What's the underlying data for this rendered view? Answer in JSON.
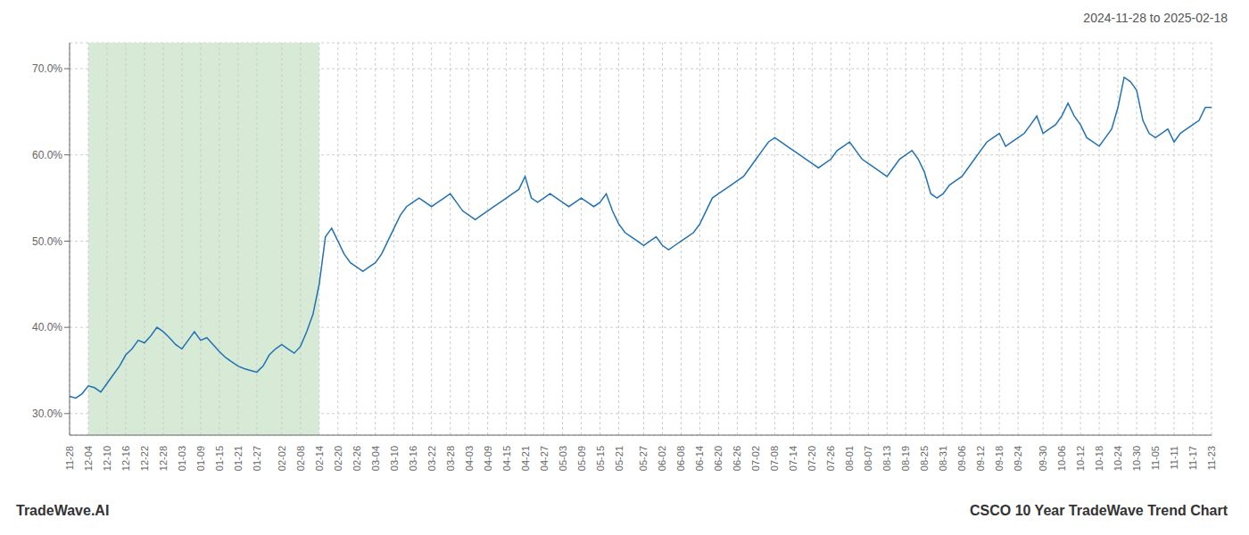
{
  "chart_data": {
    "type": "line",
    "title": "CSCO 10 Year TradeWave Trend Chart",
    "subtitle": "2024-11-28 to 2025-02-18",
    "annotations": [
      "TradeWave.AI"
    ],
    "categories": [
      "11-28",
      null,
      null,
      "12-04",
      null,
      null,
      "12-10",
      null,
      null,
      "12-16",
      null,
      null,
      "12-22",
      null,
      null,
      "12-28",
      null,
      null,
      "01-03",
      null,
      null,
      "01-09",
      null,
      null,
      "01-15",
      null,
      null,
      "01-21",
      null,
      null,
      "01-27",
      null,
      null,
      null,
      "02-02",
      null,
      null,
      "02-08",
      null,
      null,
      "02-14",
      null,
      null,
      "02-20",
      null,
      null,
      "02-26",
      null,
      null,
      "03-04",
      null,
      null,
      "03-10",
      null,
      null,
      "03-16",
      null,
      null,
      "03-22",
      null,
      null,
      "03-28",
      null,
      null,
      "04-03",
      null,
      null,
      "04-09",
      null,
      null,
      "04-15",
      null,
      null,
      "04-21",
      null,
      null,
      "04-27",
      null,
      null,
      "05-03",
      null,
      null,
      "05-09",
      null,
      null,
      "05-15",
      null,
      null,
      "05-21",
      null,
      null,
      null,
      "05-27",
      null,
      null,
      "06-02",
      null,
      null,
      "06-08",
      null,
      null,
      "06-14",
      null,
      null,
      "06-20",
      null,
      null,
      "06-26",
      null,
      null,
      "07-02",
      null,
      null,
      "07-08",
      null,
      null,
      "07-14",
      null,
      null,
      "07-20",
      null,
      null,
      "07-26",
      null,
      null,
      "08-01",
      null,
      null,
      "08-07",
      null,
      null,
      "08-13",
      null,
      null,
      "08-19",
      null,
      null,
      "08-25",
      null,
      null,
      "08-31",
      null,
      null,
      "09-06",
      null,
      null,
      "09-12",
      null,
      null,
      "09-18",
      null,
      null,
      "09-24",
      null,
      null,
      null,
      "09-30",
      null,
      null,
      "10-06",
      null,
      null,
      "10-12",
      null,
      null,
      "10-18",
      null,
      null,
      "10-24",
      null,
      null,
      "10-30",
      null,
      null,
      "11-05",
      null,
      null,
      "11-11",
      null,
      null,
      "11-17",
      null,
      null,
      "11-23"
    ],
    "values": [
      32.0,
      31.8,
      32.3,
      33.2,
      33.0,
      32.5,
      33.5,
      34.5,
      35.5,
      36.8,
      37.5,
      38.5,
      38.2,
      39.0,
      40.0,
      39.5,
      38.8,
      38.0,
      37.5,
      38.5,
      39.5,
      38.5,
      38.8,
      38.0,
      37.2,
      36.5,
      36.0,
      35.5,
      35.2,
      35.0,
      34.8,
      35.5,
      36.8,
      37.5,
      38.0,
      37.5,
      37.0,
      37.8,
      39.5,
      41.5,
      45.0,
      50.5,
      51.5,
      50.0,
      48.5,
      47.5,
      47.0,
      46.5,
      47.0,
      47.5,
      48.5,
      50.0,
      51.5,
      53.0,
      54.0,
      54.5,
      55.0,
      54.5,
      54.0,
      54.5,
      55.0,
      55.5,
      54.5,
      53.5,
      53.0,
      52.5,
      53.0,
      53.5,
      54.0,
      54.5,
      55.0,
      55.5,
      56.0,
      57.5,
      55.0,
      54.5,
      55.0,
      55.5,
      55.0,
      54.5,
      54.0,
      54.5,
      55.0,
      54.5,
      54.0,
      54.5,
      55.5,
      53.5,
      52.0,
      51.0,
      50.5,
      50.0,
      49.5,
      50.0,
      50.5,
      49.5,
      49.0,
      49.5,
      50.0,
      50.5,
      51.0,
      52.0,
      53.5,
      55.0,
      55.5,
      56.0,
      56.5,
      57.0,
      57.5,
      58.5,
      59.5,
      60.5,
      61.5,
      62.0,
      61.5,
      61.0,
      60.5,
      60.0,
      59.5,
      59.0,
      58.5,
      59.0,
      59.5,
      60.5,
      61.0,
      61.5,
      60.5,
      59.5,
      59.0,
      58.5,
      58.0,
      57.5,
      58.5,
      59.5,
      60.0,
      60.5,
      59.5,
      58.0,
      55.5,
      55.0,
      55.5,
      56.5,
      57.0,
      57.5,
      58.5,
      59.5,
      60.5,
      61.5,
      62.0,
      62.5,
      61.0,
      61.5,
      62.0,
      62.5,
      63.5,
      64.5,
      62.5,
      63.0,
      63.5,
      64.5,
      66.0,
      64.5,
      63.5,
      62.0,
      61.5,
      61.0,
      62.0,
      63.0,
      65.5,
      69.0,
      68.5,
      67.5,
      64.0,
      62.5,
      62.0,
      62.5,
      63.0,
      61.5,
      62.5,
      63.0,
      63.5,
      64.0,
      65.5,
      65.5
    ],
    "color": "#2272b4",
    "shaded_range": {
      "from": "12-04",
      "to": "02-14",
      "color": "#d6ead6"
    },
    "ylim": [
      27.5,
      73.0
    ],
    "yticks": [
      {
        "value": 30,
        "label": "30.0%"
      },
      {
        "value": 40,
        "label": "40.0%"
      },
      {
        "value": 50,
        "label": "50.0%"
      },
      {
        "value": 60,
        "label": "60.0%"
      },
      {
        "value": 70,
        "label": "70.0%"
      }
    ],
    "grid": true
  }
}
